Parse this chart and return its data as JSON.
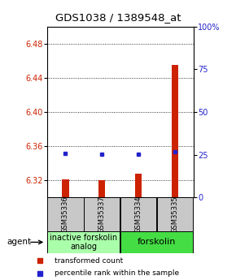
{
  "title": "GDS1038 / 1389548_at",
  "samples": [
    "GSM35336",
    "GSM35337",
    "GSM35334",
    "GSM35335"
  ],
  "red_values": [
    6.321,
    6.32,
    6.328,
    6.455
  ],
  "blue_values": [
    6.352,
    6.351,
    6.351,
    6.353
  ],
  "ylim_left": [
    6.3,
    6.5
  ],
  "yticks_left": [
    6.32,
    6.36,
    6.4,
    6.44,
    6.48
  ],
  "yticks_right": [
    0,
    25,
    50,
    75,
    100
  ],
  "group1_label": "inactive forskolin\nanalog",
  "group1_color": "#aaffaa",
  "group2_label": "forskolin",
  "group2_color": "#44dd44",
  "sample_box_color": "#c8c8c8",
  "agent_label": "agent",
  "legend_red": "transformed count",
  "legend_blue": "percentile rank within the sample",
  "title_fontsize": 9.5,
  "tick_fontsize": 7,
  "sample_fontsize": 6,
  "group_fontsize": 7,
  "legend_fontsize": 6.5,
  "red_color": "#cc2200",
  "blue_color": "#2222cc",
  "bar_width": 0.18
}
